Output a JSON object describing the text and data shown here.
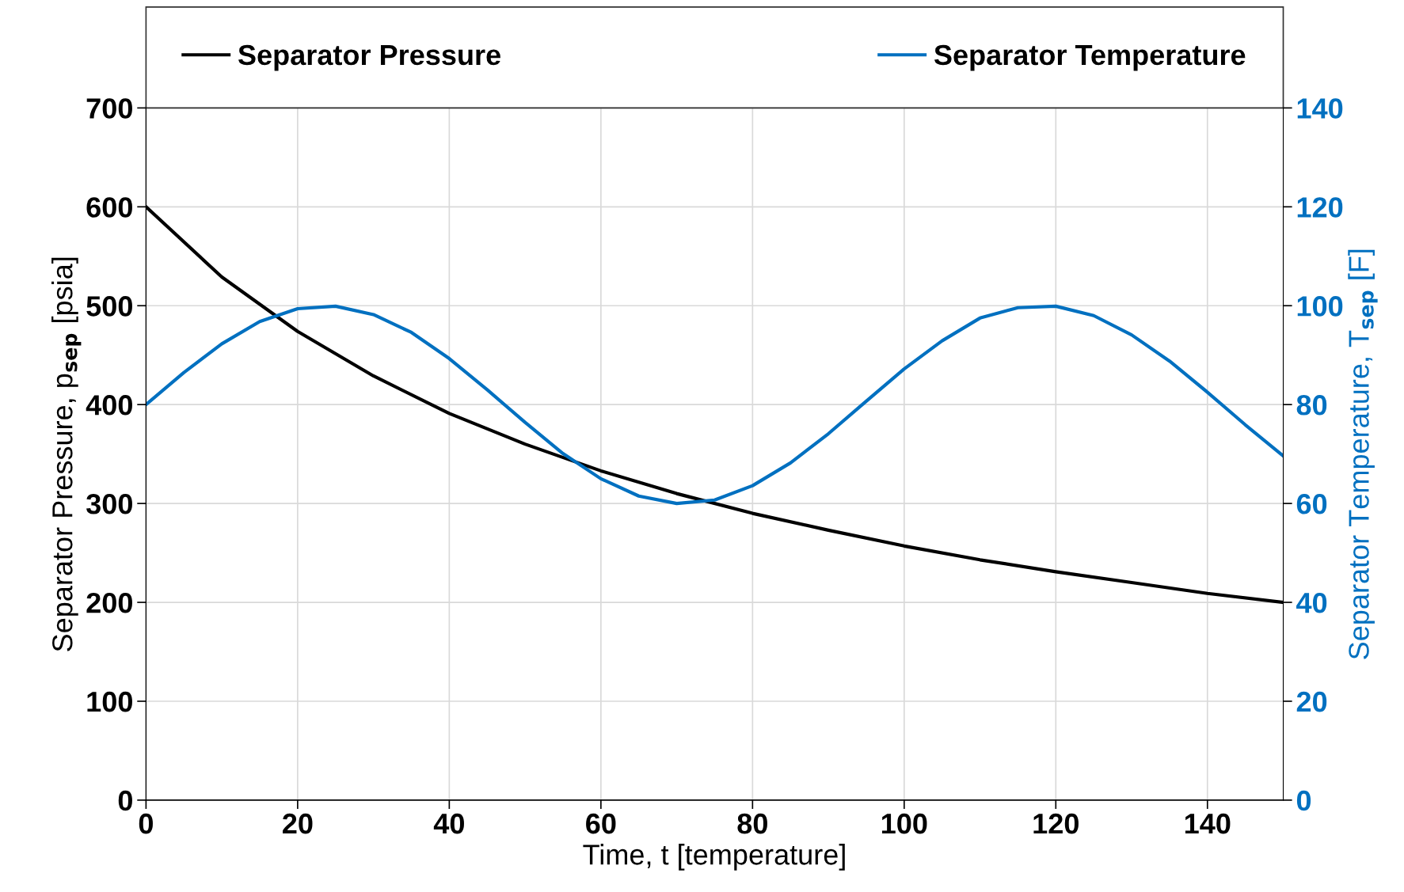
{
  "chart_data": {
    "type": "line",
    "xlabel": "Time, t [temperature]",
    "ylabel": "Separator Pressure, p$_{sep}$ [psia]",
    "y2label": "Separator Temperature, T$_{sep}$ [F]",
    "xlim": [
      0,
      150
    ],
    "xticks": [
      0,
      20,
      40,
      60,
      80,
      100,
      120,
      140
    ],
    "ylim": [
      0,
      700
    ],
    "yticks": [
      0,
      100,
      200,
      300,
      400,
      500,
      600,
      700
    ],
    "y2lim": [
      0,
      140
    ],
    "y2ticks": [
      0,
      20,
      40,
      60,
      80,
      100,
      120,
      140
    ],
    "grid": true,
    "legend": "top",
    "line_style": "solid",
    "marker": "none",
    "series": [
      {
        "name": "Separator Pressure",
        "color": "#000000",
        "x": [
          0,
          10,
          20,
          30,
          40,
          50,
          60,
          70,
          80,
          90,
          100,
          110,
          120,
          130,
          140,
          150
        ],
        "values": [
          600,
          529,
          474,
          429,
          391,
          360,
          333,
          310,
          290,
          273,
          257,
          243,
          231,
          220,
          209,
          200
        ]
      },
      {
        "name": "Separator Temperature",
        "color": "#0070c0",
        "axis": "y2",
        "x": [
          0,
          5,
          10,
          15,
          20,
          25,
          30,
          35,
          40,
          45,
          50,
          55,
          60,
          65,
          70,
          75,
          80,
          85,
          90,
          95,
          100,
          105,
          110,
          115,
          120,
          125,
          130,
          135,
          140,
          145,
          150
        ],
        "values": [
          80,
          86.5,
          92.3,
          96.8,
          99.4,
          99.9,
          98.2,
          94.6,
          89.3,
          83.0,
          76.4,
          70.1,
          65.0,
          61.5,
          60.0,
          60.7,
          63.6,
          68.2,
          74.1,
          80.7,
          87.2,
          92.9,
          97.5,
          99.6,
          99.9,
          98.0,
          94.1,
          88.8,
          82.5,
          75.9,
          69.6
        ]
      }
    ]
  }
}
